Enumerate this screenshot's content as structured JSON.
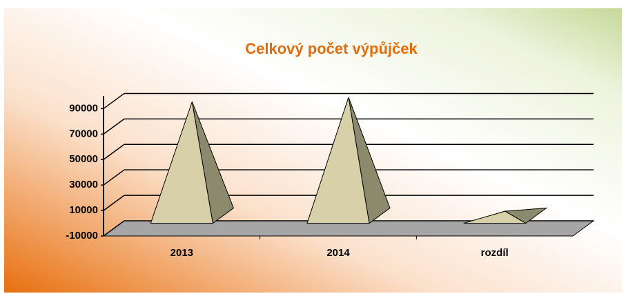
{
  "chart_data": {
    "type": "pyramid3d",
    "title": "Celkový počet výpůjček",
    "categories": [
      "2013",
      "2014",
      "rozdíl"
    ],
    "values": [
      89500,
      93000,
      3500
    ],
    "color": "#d8d0a8",
    "side_color": "#8c8a6c",
    "floor_color": "#a6a6a6",
    "ylim": [
      -10000,
      100000
    ],
    "yticks": [
      -10000,
      10000,
      30000,
      50000,
      70000,
      90000
    ],
    "grid": true
  }
}
